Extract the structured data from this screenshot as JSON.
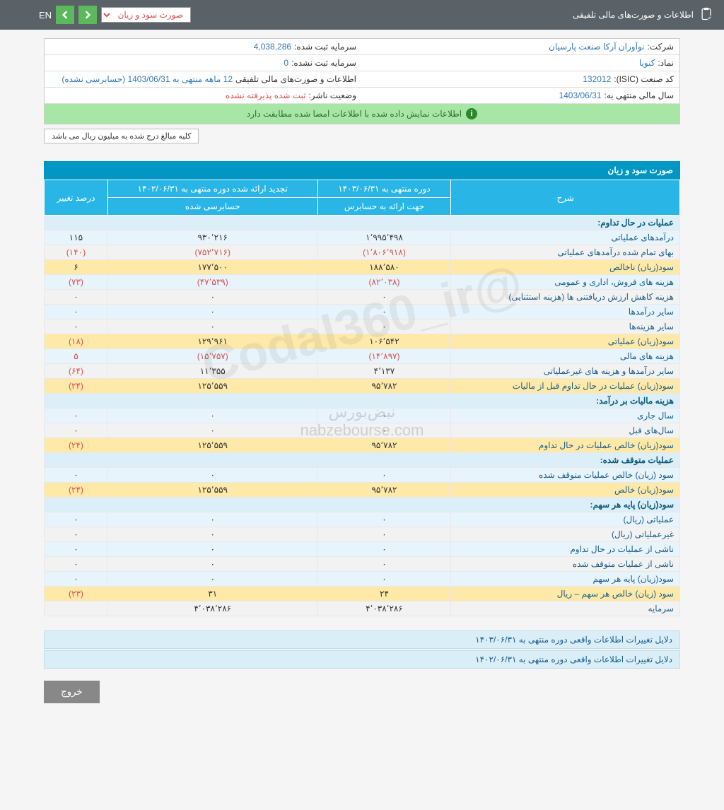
{
  "header": {
    "title": "اطلاعات و صورت‌های مالی تلفیقی",
    "dropdown_selected": "صورت سود و زیان",
    "lang": "EN"
  },
  "info": {
    "company_label": "شرکت:",
    "company_value": "نوآوران آرکا صنعت پارسیان",
    "capital_reg_label": "سرمایه ثبت شده:",
    "capital_reg_value": "4,038,286",
    "symbol_label": "نماد:",
    "symbol_value": "کنویا",
    "capital_unreg_label": "سرمایه ثبت نشده:",
    "capital_unreg_value": "0",
    "isic_label": "کد صنعت (ISIC):",
    "isic_value": "132012",
    "report_label": "اطلاعات و صورت‌های مالی تلفیقی",
    "report_value": "12 ماهه منتهی به 1403/06/31 (حسابرسی نشده)",
    "fy_label": "سال مالی منتهی به:",
    "fy_value": "1403/06/31",
    "status_label": "وضعیت ناشر:",
    "status_value": "ثبت شده پذیرفته نشده"
  },
  "confirm_text": "اطلاعات نمایش داده شده با اطلاعات امضا شده مطابقت دارد",
  "note_text": "کلیه مبالغ درج شده به میلیون ریال می باشد",
  "section_title": "صورت سود و زیان",
  "columns": {
    "desc": "شرح",
    "period_current": "دوره منتهی به ۱۴۰۳/۰۶/۳۱",
    "period_prev": "تجدید ارائه شده دوره منتهی به ۱۴۰۲/۰۶/۳۱",
    "change": "درصد تغییر",
    "sub_current": "جهت ارائه به حسابرس",
    "sub_prev": "حسابرسی شده"
  },
  "sections": {
    "s1": "عملیات در حال تداوم:",
    "s2": "هزینه مالیات بر درآمد:",
    "s3": "عملیات متوقف شده:",
    "s4": "سود(زیان) پایه هر سهم:"
  },
  "rows": [
    {
      "cls": "row-blue",
      "desc": "درآمدهای عملیاتی",
      "c": "۱٬۹۹۵٬۴۹۸",
      "p": "۹۳۰٬۲۱۶",
      "ch": "۱۱۵",
      "neg": false
    },
    {
      "cls": "row-gray",
      "desc": "بهای تمام شده درآمدهای عملیاتی",
      "c": "(۱٬۸۰۶٬۹۱۸)",
      "p": "(۷۵۲٬۷۱۶)",
      "ch": "(۱۴۰)",
      "neg": true
    },
    {
      "cls": "row-yellow",
      "desc": "سود(زیان) ناخالص",
      "c": "۱۸۸٬۵۸۰",
      "p": "۱۷۷٬۵۰۰",
      "ch": "۶",
      "neg": false
    },
    {
      "cls": "row-blue",
      "desc": "هزینه های فروش، اداری و عمومی",
      "c": "(۸۲٬۰۳۸)",
      "p": "(۴۷٬۵۳۹)",
      "ch": "(۷۳)",
      "neg": true
    },
    {
      "cls": "row-gray",
      "desc": "هزینه کاهش ارزش دریافتنی ها (هزینه استثنایی)",
      "c": "۰",
      "p": "۰",
      "ch": "۰",
      "neg": false
    },
    {
      "cls": "row-blue",
      "desc": "سایر درآمدها",
      "c": "۰",
      "p": "۰",
      "ch": "۰",
      "neg": false
    },
    {
      "cls": "row-gray",
      "desc": "سایر هزینه‌ها",
      "c": "۰",
      "p": "۰",
      "ch": "۰",
      "neg": false
    },
    {
      "cls": "row-yellow",
      "desc": "سود(زیان) عملیاتی",
      "c": "۱۰۶٬۵۴۲",
      "p": "۱۲۹٬۹۶۱",
      "ch": "(۱۸)",
      "neg": false,
      "ch_neg": true
    },
    {
      "cls": "row-blue",
      "desc": "هزینه های مالی",
      "c": "(۱۴٬۸۹۷)",
      "p": "(۱۵٬۷۵۷)",
      "ch": "۵",
      "neg": true,
      "ch_neg": false
    },
    {
      "cls": "row-gray",
      "desc": "سایر درآمدها و هزینه های غیرعملیاتی",
      "c": "۴٬۱۳۷",
      "p": "۱۱٬۳۵۵",
      "ch": "(۶۴)",
      "neg": false,
      "ch_neg": true
    },
    {
      "cls": "row-yellow",
      "desc": "سود(زیان) عملیات در حال تداوم قبل از مالیات",
      "c": "۹۵٬۷۸۲",
      "p": "۱۲۵٬۵۵۹",
      "ch": "(۲۴)",
      "neg": false,
      "ch_neg": true
    }
  ],
  "rows2": [
    {
      "cls": "row-blue",
      "desc": "سال جاری",
      "c": "۰",
      "p": "۰",
      "ch": "۰"
    },
    {
      "cls": "row-gray",
      "desc": "سال‌های قبل",
      "c": "۰",
      "p": "۰",
      "ch": "۰"
    },
    {
      "cls": "row-yellow",
      "desc": "سود(زیان) خالص عملیات در حال تداوم",
      "c": "۹۵٬۷۸۲",
      "p": "۱۲۵٬۵۵۹",
      "ch": "(۲۴)",
      "ch_neg": true
    }
  ],
  "rows3": [
    {
      "cls": "row-blue",
      "desc": "سود (زیان) خالص عملیات متوقف شده",
      "c": "۰",
      "p": "۰",
      "ch": "۰"
    },
    {
      "cls": "row-yellow",
      "desc": "سود(زیان) خالص",
      "c": "۹۵٬۷۸۲",
      "p": "۱۲۵٬۵۵۹",
      "ch": "(۲۴)",
      "ch_neg": true
    }
  ],
  "rows4": [
    {
      "cls": "row-blue",
      "desc": "عملیاتی (ریال)",
      "c": "۰",
      "p": "۰",
      "ch": "۰"
    },
    {
      "cls": "row-gray",
      "desc": "غیرعملیاتی (ریال)",
      "c": "۰",
      "p": "۰",
      "ch": "۰"
    },
    {
      "cls": "row-blue",
      "desc": "ناشی از عملیات در حال تداوم",
      "c": "۰",
      "p": "۰",
      "ch": "۰"
    },
    {
      "cls": "row-gray",
      "desc": "ناشی از عملیات متوقف شده",
      "c": "۰",
      "p": "۰",
      "ch": "۰"
    },
    {
      "cls": "row-blue",
      "desc": "سود(زیان) پایه هر سهم",
      "c": "۰",
      "p": "۰",
      "ch": "۰"
    },
    {
      "cls": "row-yellow",
      "desc": "سود (زیان) خالص هر سهم – ریال",
      "c": "۲۴",
      "p": "۳۱",
      "ch": "(۲۳)",
      "ch_neg": true
    },
    {
      "cls": "row-gray",
      "desc": "سرمایه",
      "c": "۴٬۰۳۸٬۲۸۶",
      "p": "۴٬۰۳۸٬۲۸۶",
      "ch": ""
    }
  ],
  "footer1": "دلایل تغییرات اطلاعات واقعی دوره منتهی به ۱۴۰۳/۰۶/۳۱",
  "footer2": "دلایل تغییرات اطلاعات واقعی دوره منتهی به ۱۴۰۲/۰۶/۳۱",
  "exit": "خروج",
  "wm1": "@Codal360_ir",
  "wm2_a": "نبض‌بورس",
  "wm2_b": "nabzebourse.com"
}
